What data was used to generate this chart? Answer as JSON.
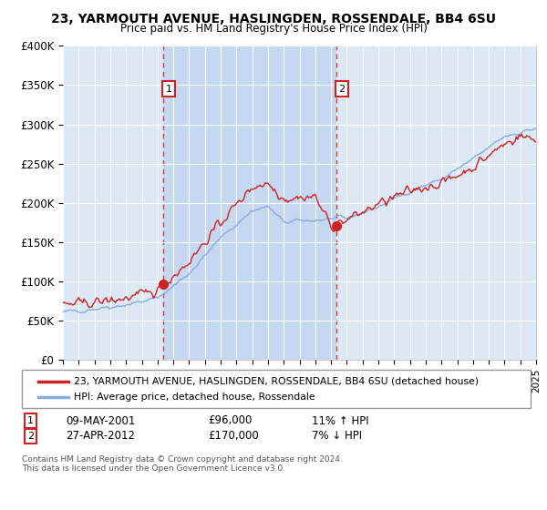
{
  "title": "23, YARMOUTH AVENUE, HASLINGDEN, ROSSENDALE, BB4 6SU",
  "subtitle": "Price paid vs. HM Land Registry's House Price Index (HPI)",
  "plot_bg_color": "#dce9f5",
  "highlight_color": "#c5d8ef",
  "line1_color": "#cc2222",
  "line2_color": "#88aadd",
  "ylim": [
    0,
    400000
  ],
  "yticks": [
    0,
    50000,
    100000,
    150000,
    200000,
    250000,
    300000,
    350000,
    400000
  ],
  "ytick_labels": [
    "£0",
    "£50K",
    "£100K",
    "£150K",
    "£200K",
    "£250K",
    "£300K",
    "£350K",
    "£400K"
  ],
  "legend_line1": "23, YARMOUTH AVENUE, HASLINGDEN, ROSSENDALE, BB4 6SU (detached house)",
  "legend_line2": "HPI: Average price, detached house, Rossendale",
  "sale1_date": "09-MAY-2001",
  "sale1_price": "£96,000",
  "sale1_hpi": "11% ↑ HPI",
  "sale2_date": "27-APR-2012",
  "sale2_price": "£170,000",
  "sale2_hpi": "7% ↓ HPI",
  "footer": "Contains HM Land Registry data © Crown copyright and database right 2024.\nThis data is licensed under the Open Government Licence v3.0.",
  "sale1_x_year": 2001.35,
  "sale1_y": 96000,
  "sale2_x_year": 2012.32,
  "sale2_y": 170000,
  "xmin": 1995,
  "xmax": 2025
}
